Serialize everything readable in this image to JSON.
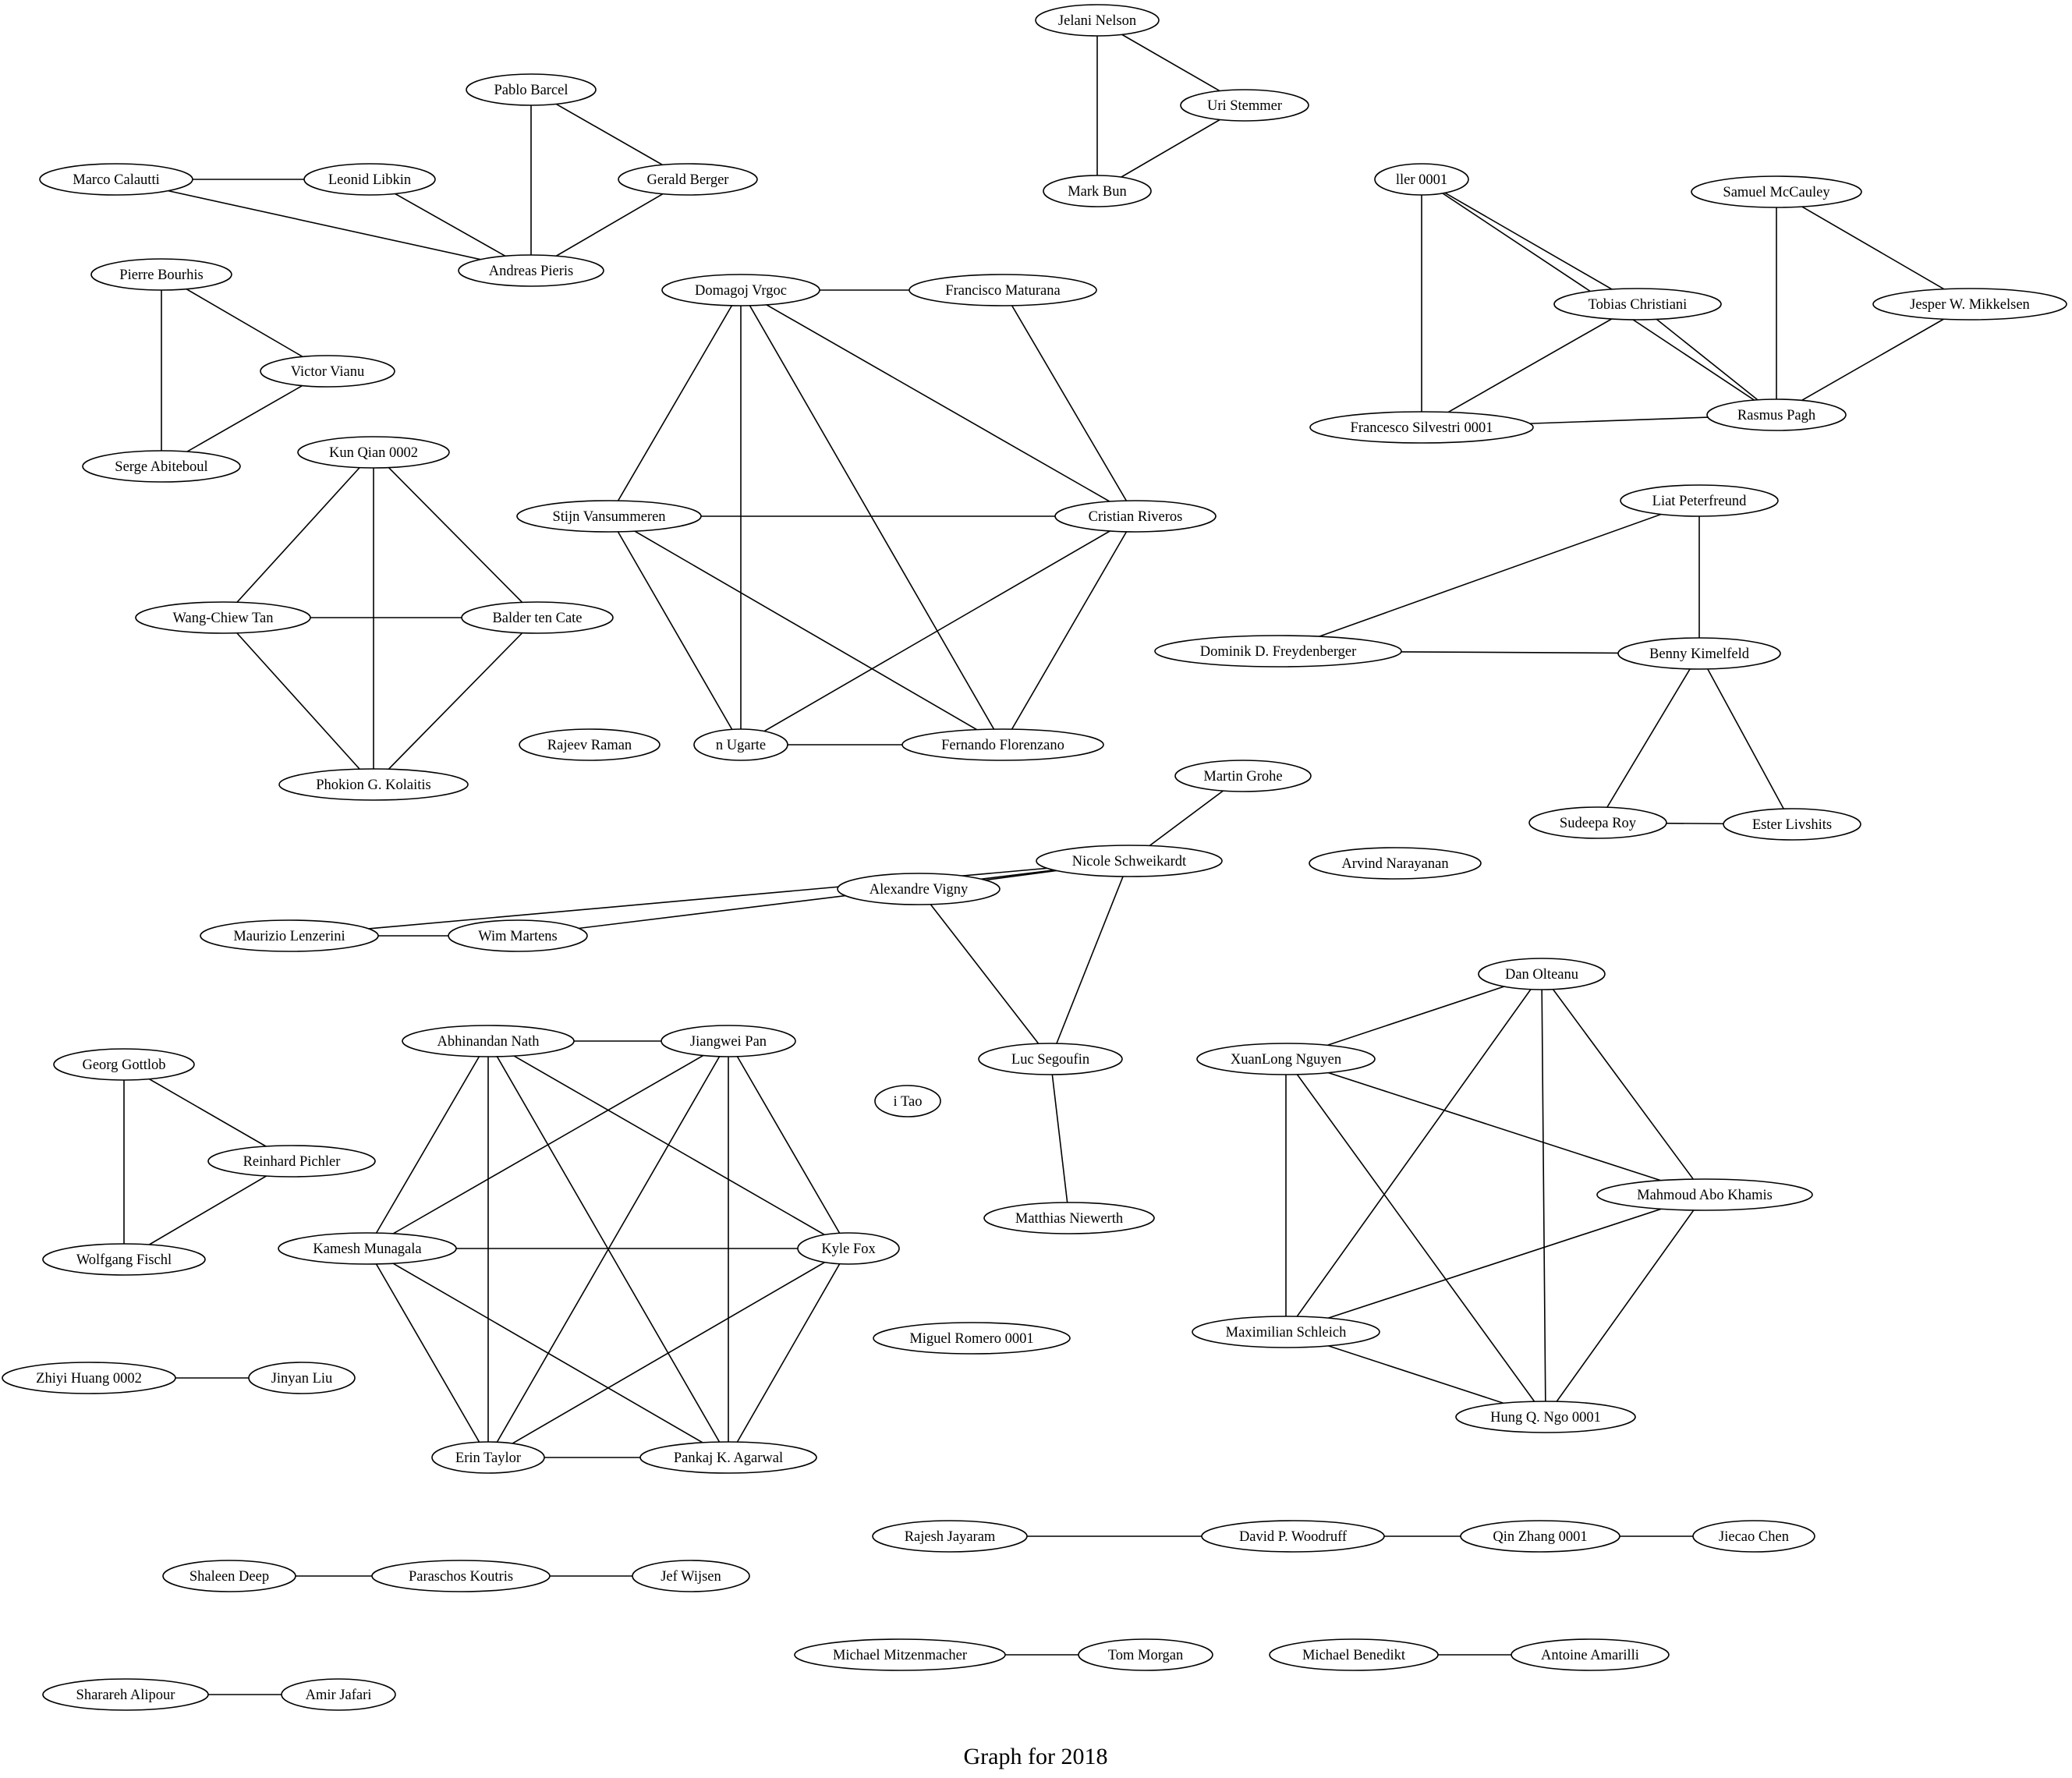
{
  "caption": "Graph for 2018",
  "nodes": [
    {
      "id": "jelani",
      "label": "Jelani Nelson"
    },
    {
      "id": "uri",
      "label": "Uri Stemmer"
    },
    {
      "id": "markbun",
      "label": "Mark Bun"
    },
    {
      "id": "pablo",
      "label": "Pablo Barcel"
    },
    {
      "id": "gerald",
      "label": "Gerald Berger"
    },
    {
      "id": "marco",
      "label": "Marco Calautti"
    },
    {
      "id": "leonid",
      "label": "Leonid Libkin"
    },
    {
      "id": "andreas",
      "label": "Andreas Pieris"
    },
    {
      "id": "pierre",
      "label": "Pierre Bourhis"
    },
    {
      "id": "victor",
      "label": "Victor Vianu"
    },
    {
      "id": "serge",
      "label": "Serge Abiteboul"
    },
    {
      "id": "kunqian",
      "label": "Kun Qian 0002"
    },
    {
      "id": "wangchiew",
      "label": "Wang-Chiew Tan"
    },
    {
      "id": "balder",
      "label": "Balder ten Cate"
    },
    {
      "id": "phokion",
      "label": "Phokion G. Kolaitis"
    },
    {
      "id": "rajeev",
      "label": "Rajeev Raman"
    },
    {
      "id": "domagoj",
      "label": "Domagoj Vrgoc"
    },
    {
      "id": "francisco",
      "label": "Francisco Maturana"
    },
    {
      "id": "stijn",
      "label": "Stijn Vansummeren"
    },
    {
      "id": "cristian",
      "label": "Cristian Riveros"
    },
    {
      "id": "nugarte",
      "label": "n Ugarte"
    },
    {
      "id": "fernando",
      "label": "Fernando Florenzano"
    },
    {
      "id": "iler",
      "label": "ller 0001"
    },
    {
      "id": "samuel",
      "label": "Samuel McCauley"
    },
    {
      "id": "tobias",
      "label": "Tobias Christiani"
    },
    {
      "id": "jesper",
      "label": "Jesper W. Mikkelsen"
    },
    {
      "id": "francesco",
      "label": "Francesco Silvestri 0001"
    },
    {
      "id": "rasmus",
      "label": "Rasmus Pagh"
    },
    {
      "id": "liat",
      "label": "Liat Peterfreund"
    },
    {
      "id": "dominik",
      "label": "Dominik D. Freydenberger"
    },
    {
      "id": "benny",
      "label": "Benny Kimelfeld"
    },
    {
      "id": "sudeepa",
      "label": "Sudeepa Roy"
    },
    {
      "id": "ester",
      "label": "Ester Livshits"
    },
    {
      "id": "martin",
      "label": "Martin Grohe"
    },
    {
      "id": "nicole",
      "label": "Nicole Schweikardt"
    },
    {
      "id": "alexandre",
      "label": "Alexandre Vigny"
    },
    {
      "id": "arvind",
      "label": "Arvind Narayanan"
    },
    {
      "id": "maurizio",
      "label": "Maurizio Lenzerini"
    },
    {
      "id": "wim",
      "label": "Wim Martens"
    },
    {
      "id": "luc",
      "label": "Luc Segoufin"
    },
    {
      "id": "itao",
      "label": "i Tao"
    },
    {
      "id": "matthias",
      "label": "Matthias Niewerth"
    },
    {
      "id": "dan",
      "label": "Dan Olteanu"
    },
    {
      "id": "xuanlong",
      "label": "XuanLong Nguyen"
    },
    {
      "id": "mahmoud",
      "label": "Mahmoud Abo Khamis"
    },
    {
      "id": "maximilian",
      "label": "Maximilian Schleich"
    },
    {
      "id": "hungngo",
      "label": "Hung Q. Ngo 0001"
    },
    {
      "id": "georg",
      "label": "Georg Gottlob"
    },
    {
      "id": "reinhard",
      "label": "Reinhard Pichler"
    },
    {
      "id": "wolfgang",
      "label": "Wolfgang Fischl"
    },
    {
      "id": "abhinandan",
      "label": "Abhinandan Nath"
    },
    {
      "id": "jiangwei",
      "label": "Jiangwei Pan"
    },
    {
      "id": "kamesh",
      "label": "Kamesh Munagala"
    },
    {
      "id": "kylefox",
      "label": "Kyle Fox"
    },
    {
      "id": "erin",
      "label": "Erin Taylor"
    },
    {
      "id": "pankaj",
      "label": "Pankaj K. Agarwal"
    },
    {
      "id": "miguel",
      "label": "Miguel Romero 0001"
    },
    {
      "id": "zhiyi",
      "label": "Zhiyi Huang 0002"
    },
    {
      "id": "jinyan",
      "label": "Jinyan Liu"
    },
    {
      "id": "rajesh",
      "label": "Rajesh Jayaram"
    },
    {
      "id": "david",
      "label": "David P. Woodruff"
    },
    {
      "id": "qinzhang",
      "label": "Qin Zhang 0001"
    },
    {
      "id": "jiecao",
      "label": "Jiecao Chen"
    },
    {
      "id": "shaleen",
      "label": "Shaleen Deep"
    },
    {
      "id": "paraschos",
      "label": "Paraschos Koutris"
    },
    {
      "id": "jef",
      "label": "Jef Wijsen"
    },
    {
      "id": "michaelm",
      "label": "Michael Mitzenmacher"
    },
    {
      "id": "tom",
      "label": "Tom Morgan"
    },
    {
      "id": "michaelb",
      "label": "Michael Benedikt"
    },
    {
      "id": "antoine",
      "label": "Antoine Amarilli"
    },
    {
      "id": "sharareh",
      "label": "Sharareh Alipour"
    },
    {
      "id": "amir",
      "label": "Amir Jafari"
    }
  ],
  "edges": [
    [
      "jelani",
      "uri"
    ],
    [
      "jelani",
      "markbun"
    ],
    [
      "uri",
      "markbun"
    ],
    [
      "pablo",
      "gerald"
    ],
    [
      "pablo",
      "andreas"
    ],
    [
      "gerald",
      "andreas"
    ],
    [
      "marco",
      "leonid"
    ],
    [
      "marco",
      "andreas"
    ],
    [
      "leonid",
      "andreas"
    ],
    [
      "pierre",
      "victor"
    ],
    [
      "pierre",
      "serge"
    ],
    [
      "victor",
      "serge"
    ],
    [
      "kunqian",
      "wangchiew"
    ],
    [
      "kunqian",
      "balder"
    ],
    [
      "kunqian",
      "phokion"
    ],
    [
      "wangchiew",
      "balder"
    ],
    [
      "wangchiew",
      "phokion"
    ],
    [
      "balder",
      "phokion"
    ],
    [
      "domagoj",
      "francisco"
    ],
    [
      "domagoj",
      "stijn"
    ],
    [
      "domagoj",
      "cristian"
    ],
    [
      "domagoj",
      "nugarte"
    ],
    [
      "domagoj",
      "fernando"
    ],
    [
      "francisco",
      "cristian"
    ],
    [
      "stijn",
      "cristian"
    ],
    [
      "stijn",
      "nugarte"
    ],
    [
      "stijn",
      "fernando"
    ],
    [
      "cristian",
      "nugarte"
    ],
    [
      "cristian",
      "fernando"
    ],
    [
      "nugarte",
      "fernando"
    ],
    [
      "iler",
      "tobias"
    ],
    [
      "iler",
      "rasmus"
    ],
    [
      "iler",
      "francesco"
    ],
    [
      "tobias",
      "francesco"
    ],
    [
      "tobias",
      "rasmus"
    ],
    [
      "francesco",
      "rasmus"
    ],
    [
      "samuel",
      "jesper"
    ],
    [
      "samuel",
      "rasmus"
    ],
    [
      "jesper",
      "rasmus"
    ],
    [
      "liat",
      "dominik"
    ],
    [
      "liat",
      "benny"
    ],
    [
      "dominik",
      "benny"
    ],
    [
      "benny",
      "sudeepa"
    ],
    [
      "benny",
      "ester"
    ],
    [
      "sudeepa",
      "ester"
    ],
    [
      "martin",
      "nicole"
    ],
    [
      "nicole",
      "alexandre"
    ],
    [
      "nicole",
      "maurizio"
    ],
    [
      "nicole",
      "wim"
    ],
    [
      "nicole",
      "luc"
    ],
    [
      "maurizio",
      "wim"
    ],
    [
      "alexandre",
      "luc"
    ],
    [
      "luc",
      "matthias"
    ],
    [
      "dan",
      "xuanlong"
    ],
    [
      "dan",
      "mahmoud"
    ],
    [
      "dan",
      "maximilian"
    ],
    [
      "dan",
      "hungngo"
    ],
    [
      "xuanlong",
      "mahmoud"
    ],
    [
      "xuanlong",
      "maximilian"
    ],
    [
      "xuanlong",
      "hungngo"
    ],
    [
      "mahmoud",
      "maximilian"
    ],
    [
      "mahmoud",
      "hungngo"
    ],
    [
      "maximilian",
      "hungngo"
    ],
    [
      "georg",
      "reinhard"
    ],
    [
      "georg",
      "wolfgang"
    ],
    [
      "reinhard",
      "wolfgang"
    ],
    [
      "abhinandan",
      "jiangwei"
    ],
    [
      "abhinandan",
      "kamesh"
    ],
    [
      "abhinandan",
      "kylefox"
    ],
    [
      "abhinandan",
      "erin"
    ],
    [
      "abhinandan",
      "pankaj"
    ],
    [
      "jiangwei",
      "kamesh"
    ],
    [
      "jiangwei",
      "kylefox"
    ],
    [
      "jiangwei",
      "erin"
    ],
    [
      "jiangwei",
      "pankaj"
    ],
    [
      "kamesh",
      "kylefox"
    ],
    [
      "kamesh",
      "erin"
    ],
    [
      "kamesh",
      "pankaj"
    ],
    [
      "kylefox",
      "erin"
    ],
    [
      "kylefox",
      "pankaj"
    ],
    [
      "erin",
      "pankaj"
    ],
    [
      "zhiyi",
      "jinyan"
    ],
    [
      "rajesh",
      "david"
    ],
    [
      "david",
      "qinzhang"
    ],
    [
      "qinzhang",
      "jiecao"
    ],
    [
      "shaleen",
      "paraschos"
    ],
    [
      "paraschos",
      "jef"
    ],
    [
      "michaelm",
      "tom"
    ],
    [
      "michaelb",
      "antoine"
    ],
    [
      "sharareh",
      "amir"
    ]
  ]
}
